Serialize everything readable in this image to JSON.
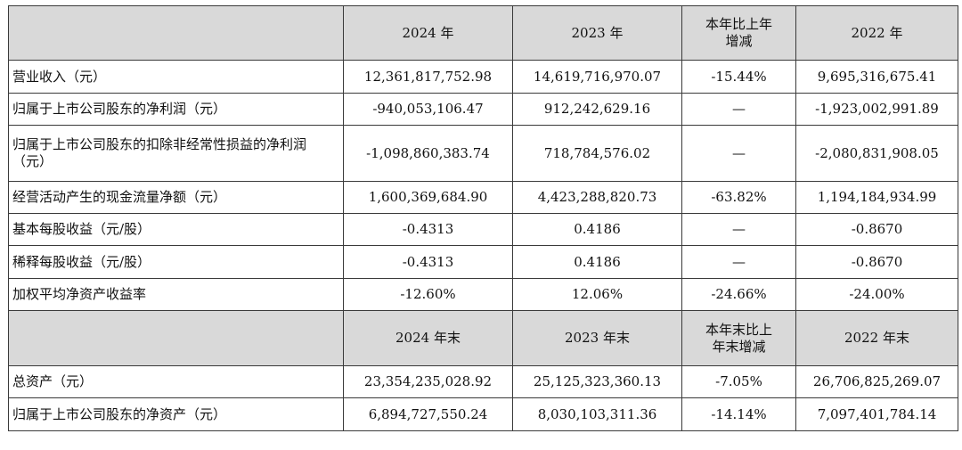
{
  "header1": [
    "",
    "2024 年",
    "2023 年",
    "本年比上年\n增减",
    "2022 年"
  ],
  "rows1": [
    [
      "营业收入（元）",
      "12,361,817,752.98",
      "14,619,716,970.07",
      "-15.44%",
      "9,695,316,675.41"
    ],
    [
      "归属于上市公司股东的净利润（元）",
      "-940,053,106.47",
      "912,242,629.16",
      "—",
      "-1,923,002,991.89"
    ],
    [
      "归属于上市公司股东的扣除非经常性损益的净利润（元）",
      "-1,098,860,383.74",
      "718,784,576.02",
      "—",
      "-2,080,831,908.05"
    ],
    [
      "经营活动产生的现金流量净额（元）",
      "1,600,369,684.90",
      "4,423,288,820.73",
      "-63.82%",
      "1,194,184,934.99"
    ],
    [
      "基本每股收益（元/股）",
      "-0.4313",
      "0.4186",
      "—",
      "-0.8670"
    ],
    [
      "稀释每股收益（元/股）",
      "-0.4313",
      "0.4186",
      "—",
      "-0.8670"
    ],
    [
      "加权平均净资产收益率",
      "-12.60%",
      "12.06%",
      "-24.66%",
      "-24.00%"
    ]
  ],
  "header2": [
    "",
    "2024 年末",
    "2023 年末",
    "本年末比上\n年末增减",
    "2022 年末"
  ],
  "rows2": [
    [
      "总资产（元）",
      "23,354,235,028.92",
      "25,125,323,360.13",
      "-7.05%",
      "26,706,825,269.07"
    ],
    [
      "归属于上市公司股东的净资产（元）",
      "6,894,727,550.24",
      "8,030,103,311.36",
      "-14.14%",
      "7,097,401,784.14"
    ]
  ]
}
